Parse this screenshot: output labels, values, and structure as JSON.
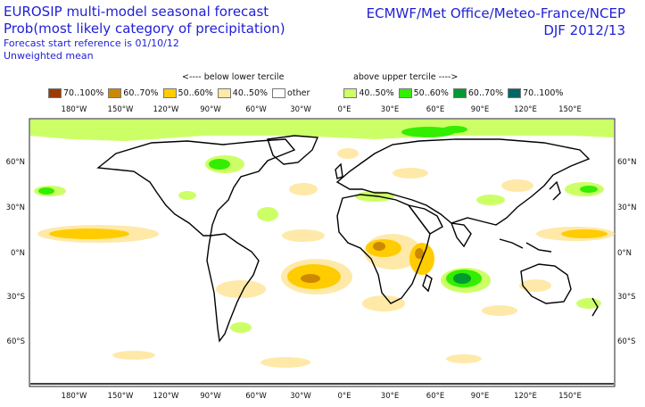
{
  "header": {
    "title_line1": "EUROSIP multi-model seasonal forecast",
    "title_line2": "Prob(most likely category of precipitation)",
    "subtitle_line1": "Forecast start reference is 01/10/12",
    "subtitle_line2": "Unweighted mean",
    "right_line1": "ECMWF/Met Office/Meteo-France/NCEP",
    "right_line2": "DJF 2012/13"
  },
  "legend": {
    "below_label": "<---- below lower tercile",
    "above_label": "above upper tercile ---->",
    "items": [
      {
        "label": "70..100%",
        "color": "#9c3a00"
      },
      {
        "label": "60..70%",
        "color": "#cc8800"
      },
      {
        "label": "50..60%",
        "color": "#ffcc00"
      },
      {
        "label": "40..50%",
        "color": "#ffe9a8"
      },
      {
        "label": "other",
        "color": "#ffffff"
      },
      {
        "label": "40..50%",
        "color": "#ccff66"
      },
      {
        "label": "50..60%",
        "color": "#33ee00"
      },
      {
        "label": "60..70%",
        "color": "#009933"
      },
      {
        "label": "70..100%",
        "color": "#006666"
      }
    ]
  },
  "axes": {
    "lon_labels": [
      "180°W",
      "150°W",
      "120°W",
      "90°W",
      "60°W",
      "30°W",
      "0°E",
      "30°E",
      "60°E",
      "90°E",
      "120°E",
      "150°E"
    ],
    "lat_labels": [
      "60°N",
      "30°N",
      "0°N",
      "30°S",
      "60°S"
    ]
  }
}
